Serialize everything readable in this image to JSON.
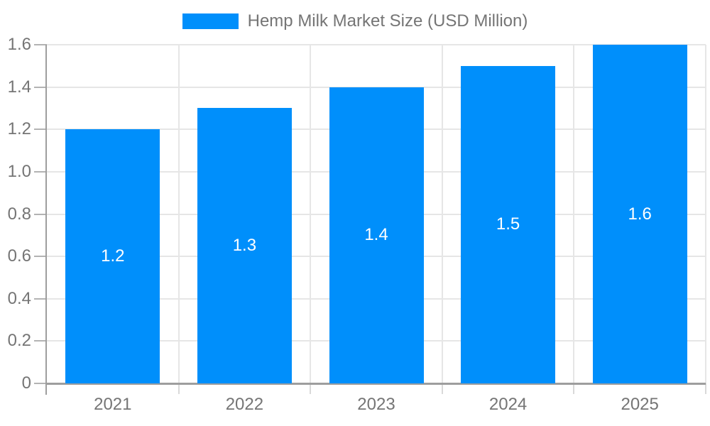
{
  "chart_data": {
    "type": "bar",
    "title": "Hemp Milk Market Size (USD Million)",
    "categories": [
      "2021",
      "2022",
      "2023",
      "2024",
      "2025"
    ],
    "series": [
      {
        "name": "Hemp Milk Market Size (USD Million)",
        "values": [
          1.2,
          1.3,
          1.4,
          1.5,
          1.6
        ]
      }
    ],
    "data_labels": [
      "1.2",
      "1.3",
      "1.4",
      "1.5",
      "1.6"
    ],
    "xlabel": "",
    "ylabel": "",
    "ylim": [
      0,
      1.6
    ],
    "y_tick_step": 0.2,
    "y_tick_labels": [
      "0",
      "0.2",
      "0.4",
      "0.6",
      "0.8",
      "1.0",
      "1.2",
      "1.4",
      "1.6"
    ],
    "grid": true,
    "legend_position": "top"
  },
  "colors": {
    "bar": "#008FFB",
    "bar_value_text": "#FFFFFF",
    "axis_label_text": "#757575",
    "legend_text": "#757575",
    "gridline": "#E6E6E6",
    "axis_line": "#9E9E9E",
    "y_tick_mark": "#B3B3B3",
    "x_tick_mark": "#D9D9D9",
    "background": "#FFFFFF"
  }
}
